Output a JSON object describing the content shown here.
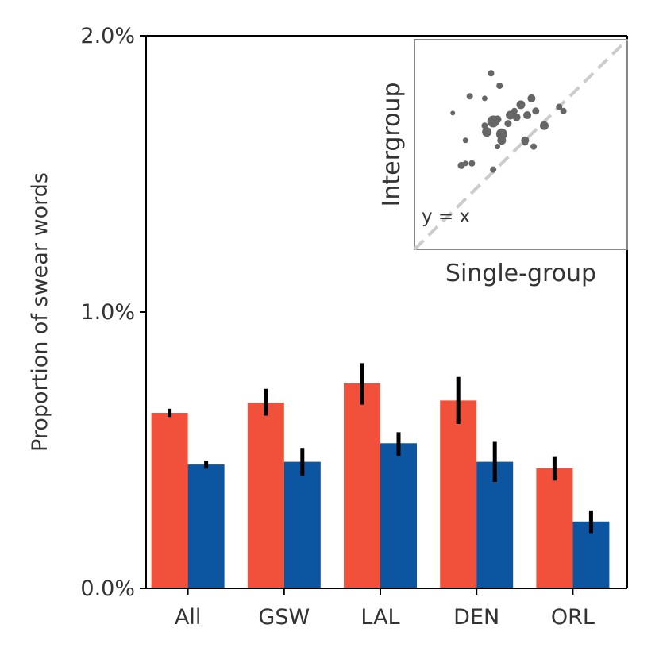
{
  "chart_data": {
    "type": "bar",
    "title": "",
    "xlabel": "",
    "ylabel": "Proportion of swear words",
    "ylim": [
      0,
      2.0
    ],
    "yticks": [
      "0.0%",
      "1.0%",
      "2.0%"
    ],
    "categories": [
      "All",
      "GSW",
      "LAL",
      "DEN",
      "ORL"
    ],
    "series": [
      {
        "name": "Intergroup",
        "color": "#f1513a",
        "values": [
          0.635,
          0.672,
          0.742,
          0.68,
          0.434
        ],
        "ci": [
          [
            0.62,
            0.65
          ],
          [
            0.625,
            0.722
          ],
          [
            0.665,
            0.815
          ],
          [
            0.595,
            0.765
          ],
          [
            0.39,
            0.478
          ]
        ]
      },
      {
        "name": "Single-group",
        "color": "#0c55a0",
        "values": [
          0.448,
          0.458,
          0.525,
          0.458,
          0.242
        ],
        "ci": [
          [
            0.433,
            0.462
          ],
          [
            0.408,
            0.508
          ],
          [
            0.48,
            0.565
          ],
          [
            0.385,
            0.53
          ],
          [
            0.2,
            0.282
          ]
        ]
      }
    ],
    "inset": {
      "type": "scatter",
      "xlabel": "Single-group",
      "ylabel": "Intergroup",
      "annotation": "y = x",
      "reference_line": "y = x",
      "color": "#666666",
      "points": [
        {
          "x": 0.36,
          "y": 0.84,
          "size": 5
        },
        {
          "x": 0.4,
          "y": 0.78,
          "size": 5
        },
        {
          "x": 0.26,
          "y": 0.73,
          "size": 5
        },
        {
          "x": 0.33,
          "y": 0.72,
          "size": 4
        },
        {
          "x": 0.55,
          "y": 0.72,
          "size": 7
        },
        {
          "x": 0.5,
          "y": 0.69,
          "size": 8
        },
        {
          "x": 0.68,
          "y": 0.68,
          "size": 5
        },
        {
          "x": 0.47,
          "y": 0.66,
          "size": 5
        },
        {
          "x": 0.18,
          "y": 0.65,
          "size": 3
        },
        {
          "x": 0.7,
          "y": 0.66,
          "size": 5
        },
        {
          "x": 0.45,
          "y": 0.64,
          "size": 8
        },
        {
          "x": 0.39,
          "y": 0.62,
          "size": 7
        },
        {
          "x": 0.48,
          "y": 0.63,
          "size": 7
        },
        {
          "x": 0.53,
          "y": 0.64,
          "size": 7
        },
        {
          "x": 0.57,
          "y": 0.66,
          "size": 6
        },
        {
          "x": 0.37,
          "y": 0.61,
          "size": 12
        },
        {
          "x": 0.33,
          "y": 0.59,
          "size": 5
        },
        {
          "x": 0.44,
          "y": 0.6,
          "size": 6
        },
        {
          "x": 0.61,
          "y": 0.59,
          "size": 8
        },
        {
          "x": 0.34,
          "y": 0.56,
          "size": 9
        },
        {
          "x": 0.41,
          "y": 0.55,
          "size": 11
        },
        {
          "x": 0.41,
          "y": 0.52,
          "size": 8
        },
        {
          "x": 0.24,
          "y": 0.52,
          "size": 4
        },
        {
          "x": 0.52,
          "y": 0.52,
          "size": 7
        },
        {
          "x": 0.39,
          "y": 0.49,
          "size": 4
        },
        {
          "x": 0.56,
          "y": 0.49,
          "size": 5
        },
        {
          "x": 0.52,
          "y": 0.51,
          "size": 5
        },
        {
          "x": 0.22,
          "y": 0.4,
          "size": 6
        },
        {
          "x": 0.24,
          "y": 0.41,
          "size": 4
        },
        {
          "x": 0.27,
          "y": 0.41,
          "size": 5
        },
        {
          "x": 0.37,
          "y": 0.38,
          "size": 5
        }
      ]
    }
  }
}
